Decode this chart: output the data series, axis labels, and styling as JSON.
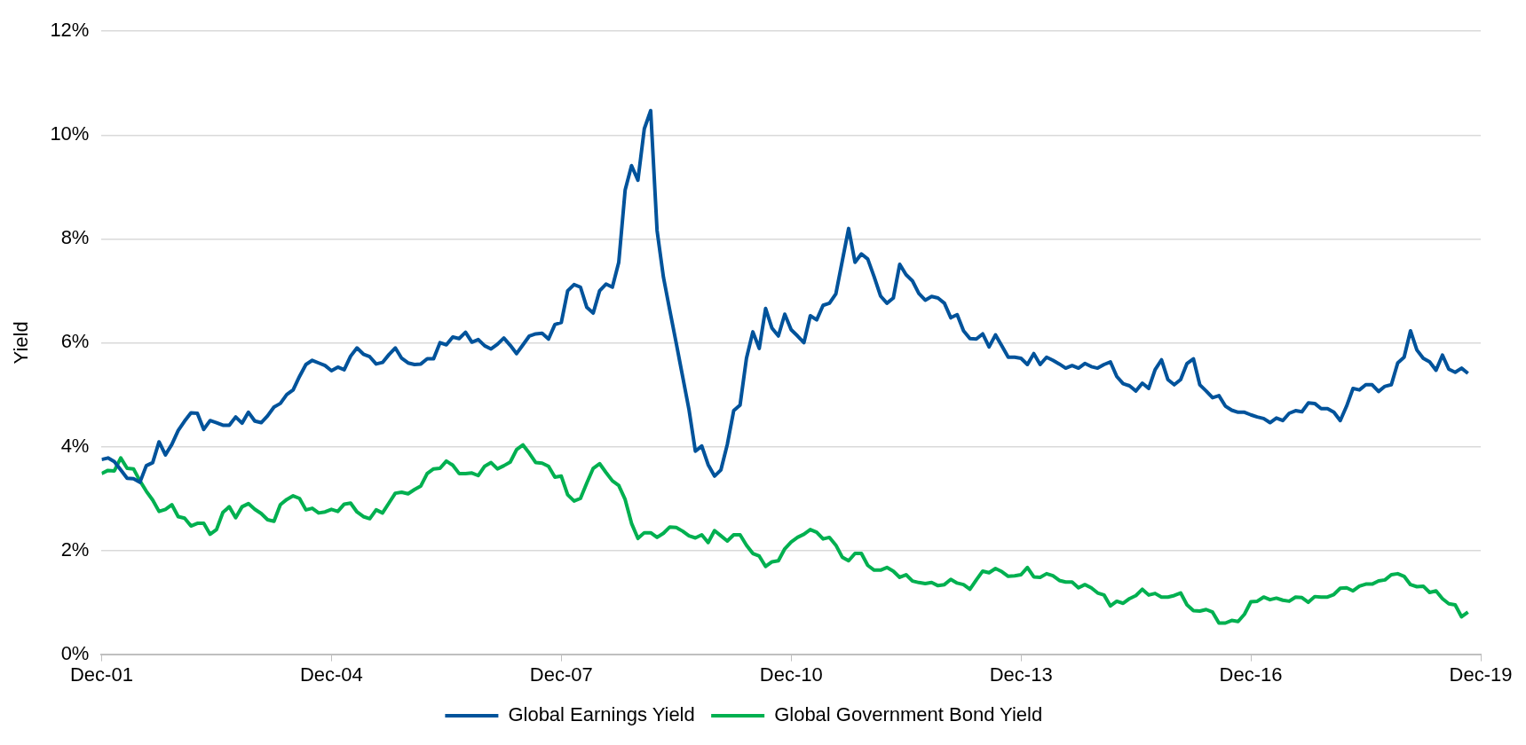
{
  "chart_data": {
    "type": "line",
    "ylabel": "Yield",
    "xlim": [
      "2001-12",
      "2019-12"
    ],
    "ylim": [
      0,
      12
    ],
    "xticks": [
      {
        "value": "2001-12",
        "label": "Dec-01"
      },
      {
        "value": "2004-12",
        "label": "Dec-04"
      },
      {
        "value": "2007-12",
        "label": "Dec-07"
      },
      {
        "value": "2010-12",
        "label": "Dec-10"
      },
      {
        "value": "2013-12",
        "label": "Dec-13"
      },
      {
        "value": "2016-12",
        "label": "Dec-16"
      },
      {
        "value": "2019-12",
        "label": "Dec-19"
      }
    ],
    "yticks": [
      {
        "value": 0,
        "label": "0%"
      },
      {
        "value": 2,
        "label": "2%"
      },
      {
        "value": 4,
        "label": "4%"
      },
      {
        "value": 6,
        "label": "6%"
      },
      {
        "value": 8,
        "label": "8%"
      },
      {
        "value": 10,
        "label": "10%"
      },
      {
        "value": 12,
        "label": "12%"
      }
    ],
    "grid": "y",
    "legend": "bottom",
    "marker": "none",
    "line_style": "solid",
    "x": [
      "2001-12",
      "2002-01",
      "2002-02",
      "2002-03",
      "2002-04",
      "2002-05",
      "2002-06",
      "2002-07",
      "2002-08",
      "2002-09",
      "2002-10",
      "2002-11",
      "2002-12",
      "2003-01",
      "2003-02",
      "2003-03",
      "2003-04",
      "2003-05",
      "2003-06",
      "2003-07",
      "2003-08",
      "2003-09",
      "2003-10",
      "2003-11",
      "2003-12",
      "2004-01",
      "2004-02",
      "2004-03",
      "2004-04",
      "2004-05",
      "2004-06",
      "2004-07",
      "2004-08",
      "2004-09",
      "2004-10",
      "2004-11",
      "2004-12",
      "2005-01",
      "2005-02",
      "2005-03",
      "2005-04",
      "2005-05",
      "2005-06",
      "2005-07",
      "2005-08",
      "2005-09",
      "2005-10",
      "2005-11",
      "2005-12",
      "2006-01",
      "2006-02",
      "2006-03",
      "2006-04",
      "2006-05",
      "2006-06",
      "2006-07",
      "2006-08",
      "2006-09",
      "2006-10",
      "2006-11",
      "2006-12",
      "2007-01",
      "2007-02",
      "2007-03",
      "2007-04",
      "2007-05",
      "2007-06",
      "2007-07",
      "2007-08",
      "2007-09",
      "2007-10",
      "2007-11",
      "2007-12",
      "2008-01",
      "2008-02",
      "2008-03",
      "2008-04",
      "2008-05",
      "2008-06",
      "2008-07",
      "2008-08",
      "2008-09",
      "2008-10",
      "2008-11",
      "2008-12",
      "2009-01",
      "2009-02",
      "2009-03",
      "2009-04",
      "2009-05",
      "2009-06",
      "2009-07",
      "2009-08",
      "2009-09",
      "2009-10",
      "2009-11",
      "2009-12",
      "2010-01",
      "2010-02",
      "2010-03",
      "2010-04",
      "2010-05",
      "2010-06",
      "2010-07",
      "2010-08",
      "2010-09",
      "2010-10",
      "2010-11",
      "2010-12",
      "2011-01",
      "2011-02",
      "2011-03",
      "2011-04",
      "2011-05",
      "2011-06",
      "2011-07",
      "2011-08",
      "2011-09",
      "2011-10",
      "2011-11",
      "2011-12",
      "2012-01",
      "2012-02",
      "2012-03",
      "2012-04",
      "2012-05",
      "2012-06",
      "2012-07",
      "2012-08",
      "2012-09",
      "2012-10",
      "2012-11",
      "2012-12",
      "2013-01",
      "2013-02",
      "2013-03",
      "2013-04",
      "2013-05",
      "2013-06",
      "2013-07",
      "2013-08",
      "2013-09",
      "2013-10",
      "2013-11",
      "2013-12",
      "2014-01",
      "2014-02",
      "2014-03",
      "2014-04",
      "2014-05",
      "2014-06",
      "2014-07",
      "2014-08",
      "2014-09",
      "2014-10",
      "2014-11",
      "2014-12",
      "2015-01",
      "2015-02",
      "2015-03",
      "2015-04",
      "2015-05",
      "2015-06",
      "2015-07",
      "2015-08",
      "2015-09",
      "2015-10",
      "2015-11",
      "2015-12",
      "2016-01",
      "2016-02",
      "2016-03",
      "2016-04",
      "2016-05",
      "2016-06",
      "2016-07",
      "2016-08",
      "2016-09",
      "2016-10",
      "2016-11",
      "2016-12",
      "2017-01",
      "2017-02",
      "2017-03",
      "2017-04",
      "2017-05",
      "2017-06",
      "2017-07",
      "2017-08",
      "2017-09",
      "2017-10",
      "2017-11",
      "2017-12",
      "2018-01",
      "2018-02",
      "2018-03",
      "2018-04",
      "2018-05",
      "2018-06",
      "2018-07",
      "2018-08",
      "2018-09",
      "2018-10",
      "2018-11",
      "2018-12",
      "2019-01",
      "2019-02",
      "2019-03",
      "2019-04",
      "2019-05",
      "2019-06",
      "2019-07",
      "2019-08",
      "2019-09",
      "2019-10"
    ],
    "series": [
      {
        "name": "Global Earnings Yield",
        "color": "#00539b",
        "values": [
          3.75,
          3.78,
          3.71,
          3.55,
          3.39,
          3.38,
          3.31,
          3.63,
          3.69,
          4.09,
          3.84,
          4.04,
          4.31,
          4.49,
          4.65,
          4.64,
          4.33,
          4.5,
          4.46,
          4.41,
          4.41,
          4.57,
          4.45,
          4.66,
          4.49,
          4.46,
          4.59,
          4.76,
          4.83,
          5.0,
          5.09,
          5.35,
          5.58,
          5.66,
          5.61,
          5.56,
          5.46,
          5.53,
          5.48,
          5.74,
          5.9,
          5.78,
          5.73,
          5.59,
          5.62,
          5.77,
          5.9,
          5.7,
          5.61,
          5.58,
          5.59,
          5.69,
          5.69,
          6.0,
          5.96,
          6.11,
          6.08,
          6.2,
          6.01,
          6.06,
          5.94,
          5.88,
          5.97,
          6.09,
          5.95,
          5.79,
          5.96,
          6.13,
          6.17,
          6.18,
          6.07,
          6.35,
          6.39,
          7.0,
          7.12,
          7.07,
          6.68,
          6.57,
          7.0,
          7.13,
          7.07,
          7.55,
          8.94,
          9.41,
          9.13,
          10.12,
          10.47,
          8.16,
          7.26,
          6.62,
          5.99,
          5.35,
          4.71,
          3.91,
          4.01,
          3.65,
          3.43,
          3.55,
          4.04,
          4.69,
          4.8,
          5.7,
          6.21,
          5.89,
          6.66,
          6.28,
          6.13,
          6.55,
          6.25,
          6.13,
          6.0,
          6.52,
          6.44,
          6.72,
          6.76,
          6.94,
          7.57,
          8.2,
          7.55,
          7.71,
          7.61,
          7.27,
          6.9,
          6.76,
          6.86,
          7.51,
          7.31,
          7.19,
          6.95,
          6.82,
          6.89,
          6.86,
          6.76,
          6.48,
          6.54,
          6.23,
          6.08,
          6.07,
          6.17,
          5.92,
          6.15,
          5.94,
          5.72,
          5.72,
          5.7,
          5.58,
          5.79,
          5.58,
          5.72,
          5.66,
          5.59,
          5.51,
          5.56,
          5.51,
          5.6,
          5.54,
          5.51,
          5.58,
          5.63,
          5.35,
          5.21,
          5.17,
          5.07,
          5.22,
          5.12,
          5.48,
          5.67,
          5.29,
          5.19,
          5.29,
          5.6,
          5.69,
          5.19,
          5.07,
          4.94,
          4.98,
          4.78,
          4.7,
          4.66,
          4.66,
          4.61,
          4.57,
          4.54,
          4.46,
          4.55,
          4.5,
          4.64,
          4.69,
          4.67,
          4.84,
          4.83,
          4.73,
          4.73,
          4.66,
          4.5,
          4.78,
          5.12,
          5.09,
          5.19,
          5.19,
          5.06,
          5.16,
          5.19,
          5.61,
          5.72,
          6.23,
          5.86,
          5.7,
          5.63,
          5.47,
          5.76,
          5.49,
          5.43,
          5.51,
          5.41
        ]
      },
      {
        "name": "Global Government Bond Yield",
        "color": "#00b050",
        "values": [
          3.48,
          3.54,
          3.53,
          3.78,
          3.58,
          3.57,
          3.34,
          3.14,
          2.97,
          2.75,
          2.79,
          2.88,
          2.65,
          2.62,
          2.47,
          2.52,
          2.52,
          2.31,
          2.4,
          2.73,
          2.84,
          2.63,
          2.84,
          2.9,
          2.79,
          2.71,
          2.59,
          2.56,
          2.88,
          2.98,
          3.05,
          3.0,
          2.78,
          2.81,
          2.72,
          2.74,
          2.79,
          2.75,
          2.89,
          2.91,
          2.74,
          2.65,
          2.61,
          2.78,
          2.72,
          2.91,
          3.1,
          3.12,
          3.09,
          3.17,
          3.24,
          3.48,
          3.57,
          3.58,
          3.72,
          3.64,
          3.48,
          3.48,
          3.49,
          3.44,
          3.62,
          3.69,
          3.57,
          3.63,
          3.7,
          3.94,
          4.03,
          3.87,
          3.69,
          3.68,
          3.62,
          3.41,
          3.43,
          3.07,
          2.95,
          3.0,
          3.3,
          3.58,
          3.67,
          3.5,
          3.34,
          3.25,
          2.98,
          2.52,
          2.23,
          2.34,
          2.34,
          2.25,
          2.33,
          2.45,
          2.44,
          2.37,
          2.28,
          2.24,
          2.3,
          2.15,
          2.38,
          2.28,
          2.18,
          2.3,
          2.3,
          2.1,
          1.94,
          1.89,
          1.69,
          1.78,
          1.8,
          2.03,
          2.16,
          2.25,
          2.31,
          2.4,
          2.35,
          2.22,
          2.25,
          2.1,
          1.87,
          1.8,
          1.94,
          1.94,
          1.71,
          1.62,
          1.62,
          1.67,
          1.6,
          1.48,
          1.53,
          1.41,
          1.38,
          1.36,
          1.38,
          1.32,
          1.34,
          1.44,
          1.37,
          1.34,
          1.25,
          1.43,
          1.6,
          1.57,
          1.65,
          1.59,
          1.5,
          1.51,
          1.53,
          1.67,
          1.49,
          1.48,
          1.55,
          1.51,
          1.42,
          1.39,
          1.39,
          1.28,
          1.34,
          1.28,
          1.18,
          1.14,
          0.93,
          1.02,
          0.98,
          1.07,
          1.13,
          1.25,
          1.14,
          1.17,
          1.1,
          1.1,
          1.13,
          1.18,
          0.95,
          0.84,
          0.83,
          0.86,
          0.81,
          0.6,
          0.6,
          0.65,
          0.63,
          0.77,
          1.01,
          1.02,
          1.1,
          1.05,
          1.08,
          1.04,
          1.02,
          1.1,
          1.09,
          1.0,
          1.11,
          1.1,
          1.1,
          1.15,
          1.27,
          1.28,
          1.22,
          1.31,
          1.35,
          1.35,
          1.41,
          1.43,
          1.53,
          1.55,
          1.5,
          1.34,
          1.3,
          1.31,
          1.19,
          1.22,
          1.07,
          0.97,
          0.95,
          0.72,
          0.81
        ]
      }
    ]
  }
}
